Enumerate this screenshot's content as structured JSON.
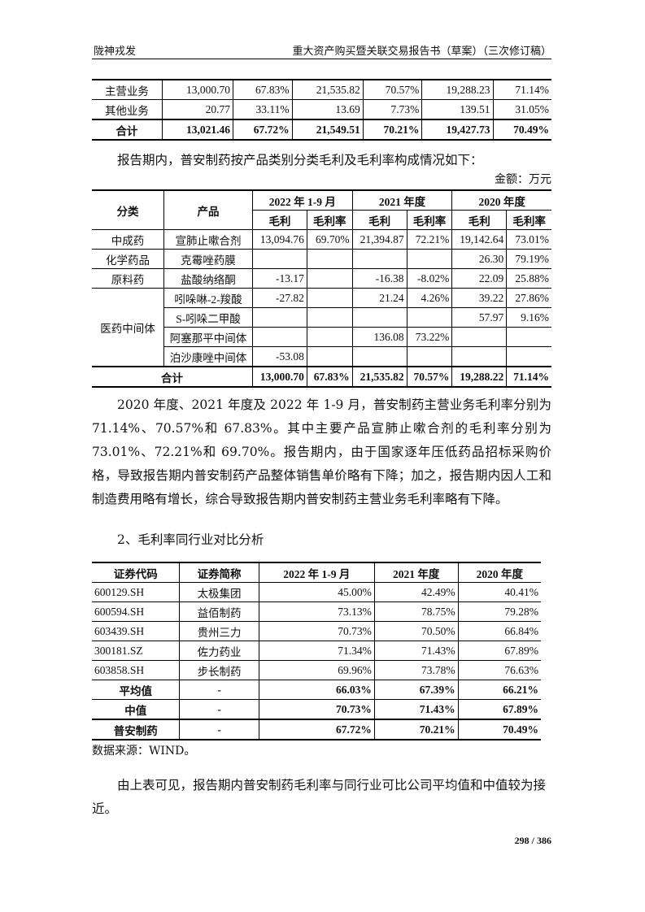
{
  "header": {
    "left": "陇神戎发",
    "right": "重大资产购买暨关联交易报告书（草案）（三次修订稿）"
  },
  "table1": {
    "rows": [
      [
        "主营业务",
        "13,000.70",
        "67.83%",
        "21,535.82",
        "70.57%",
        "19,288.23",
        "71.14%"
      ],
      [
        "其他业务",
        "20.77",
        "33.11%",
        "13.69",
        "7.73%",
        "139.51",
        "31.05%"
      ],
      [
        "合计",
        "13,021.46",
        "67.72%",
        "21,549.51",
        "70.21%",
        "19,427.73",
        "70.49%"
      ]
    ]
  },
  "intro2": "报告期内，普安制药按产品类别分类毛利及毛利率构成情况如下：",
  "unit": "金额：万元",
  "table2": {
    "h_category": "分类",
    "h_product": "产品",
    "periods": [
      "2022 年 1-9 月",
      "2021 年度",
      "2020 年度"
    ],
    "sub": [
      "毛利",
      "毛利率"
    ],
    "rows": [
      {
        "cat": "中成药",
        "prod": "宣肺止嗽合剂",
        "v": [
          "13,094.76",
          "69.70%",
          "21,394.87",
          "72.21%",
          "19,142.64",
          "73.01%"
        ]
      },
      {
        "cat": "化学药品",
        "prod": "克霉唑药膜",
        "v": [
          "",
          "",
          "",
          "",
          "26.30",
          "79.19%"
        ]
      },
      {
        "cat": "原料药",
        "prod": "盐酸纳络酮",
        "v": [
          "-13.17",
          "",
          "-16.38",
          "-8.02%",
          "22.09",
          "25.88%"
        ]
      },
      {
        "cat": "医药中间体",
        "prod": "吲哚啉-2-羧酸",
        "v": [
          "-27.82",
          "",
          "21.24",
          "4.26%",
          "39.22",
          "27.86%"
        ]
      },
      {
        "prod": "S-吲哚二甲酸",
        "v": [
          "",
          "",
          "",
          "",
          "57.97",
          "9.16%"
        ]
      },
      {
        "prod": "阿塞那平中间体",
        "v": [
          "",
          "",
          "136.08",
          "73.22%",
          "",
          ""
        ]
      },
      {
        "prod": "泊沙康唑中间体",
        "v": [
          "-53.08",
          "",
          "",
          "",
          "",
          ""
        ]
      }
    ],
    "total": {
      "label": "合计",
      "v": [
        "13,000.70",
        "67.83%",
        "21,535.82",
        "70.57%",
        "19,288.22",
        "71.14%"
      ]
    }
  },
  "para1": "2020 年度、2021 年度及 2022 年 1-9 月，普安制药主营业务毛利率分别为 71.14%、70.57%和 67.83%。其中主要产品宣肺止嗽合剂的毛利率分别为 73.01%、72.21%和 69.70%。报告期内，由于国家逐年压低药品招标采购价格，导致报告期内普安制药产品整体销售单价略有下降；加之，报告期内因人工和制造费用略有增长，综合导致报告期内普安制药主营业务毛利率略有下降。",
  "section": "2、毛利率同行业对比分析",
  "table3": {
    "headers": [
      "证券代码",
      "证券简称",
      "2022 年 1-9 月",
      "2021 年度",
      "2020 年度"
    ],
    "rows": [
      [
        "600129.SH",
        "太极集团",
        "45.00%",
        "42.49%",
        "40.41%"
      ],
      [
        "600594.SH",
        "益佰制药",
        "73.13%",
        "78.75%",
        "79.28%"
      ],
      [
        "603439.SH",
        "贵州三力",
        "70.73%",
        "70.50%",
        "66.84%"
      ],
      [
        "300181.SZ",
        "佐力药业",
        "71.34%",
        "71.43%",
        "67.89%"
      ],
      [
        "603858.SH",
        "步长制药",
        "69.96%",
        "73.78%",
        "76.63%"
      ]
    ],
    "summary": [
      [
        "平均值",
        "-",
        "66.03%",
        "67.39%",
        "66.21%"
      ],
      [
        "中值",
        "-",
        "70.73%",
        "71.43%",
        "67.89%"
      ],
      [
        "普安制药",
        "-",
        "67.72%",
        "70.21%",
        "70.49%"
      ]
    ]
  },
  "source": "数据来源：WIND。",
  "para2": "由上表可见，报告期内普安制药毛利率与同行业可比公司平均值和中值较为接近。",
  "page_number": "298 / 386"
}
